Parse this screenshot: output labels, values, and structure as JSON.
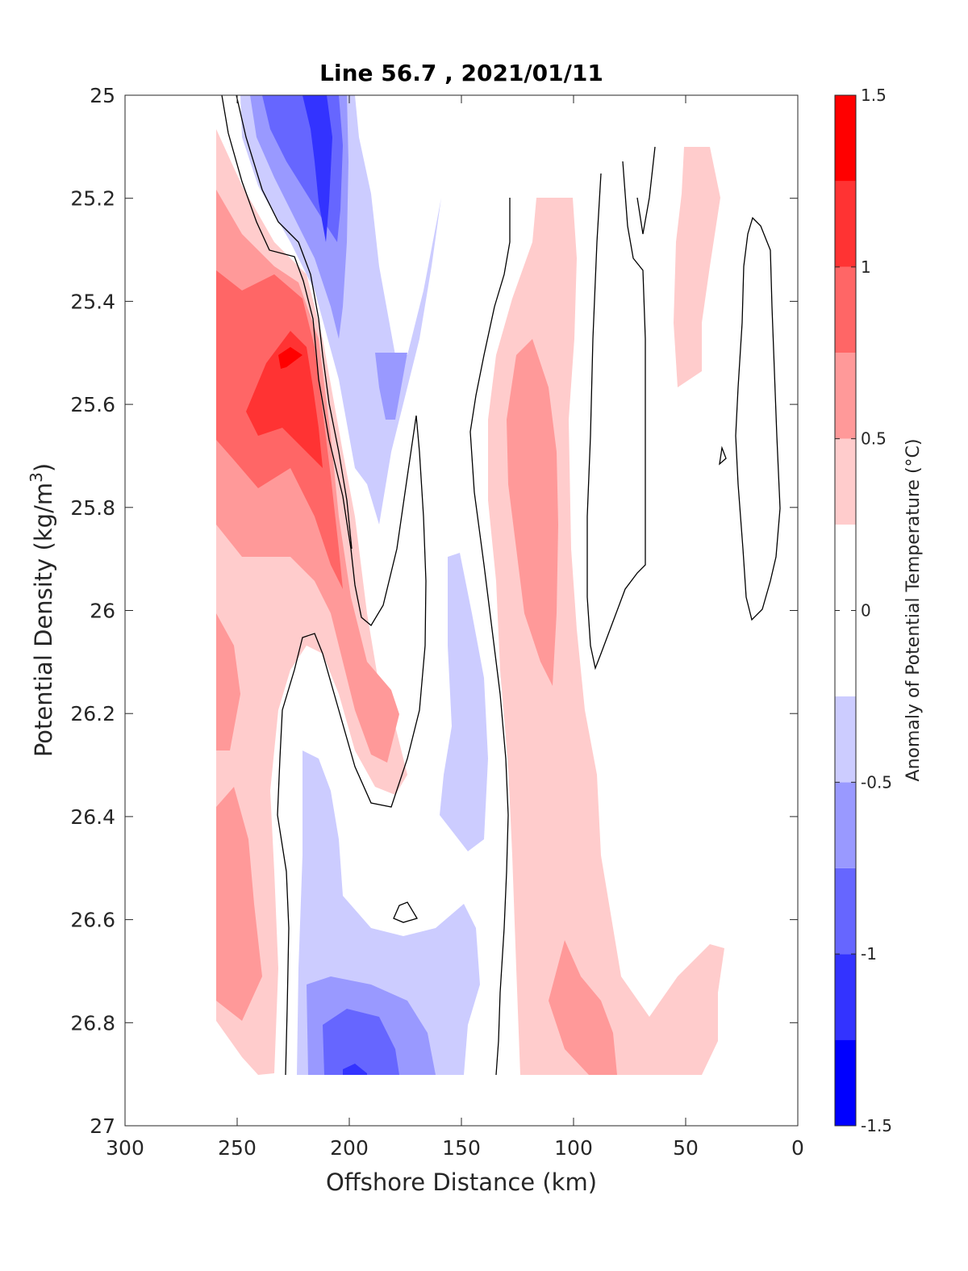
{
  "chart_data": {
    "type": "heatmap",
    "subtype": "filled-contour",
    "title": "Line 56.7 , 2021/01/11",
    "xlabel": "Offshore Distance (km)",
    "ylabel_main": "Potential Density (kg/m",
    "ylabel_sup": "3",
    "ylabel_close": ")",
    "x_ticks": [
      "300",
      "250",
      "200",
      "150",
      "100",
      "50",
      "0"
    ],
    "y_ticks": [
      "25",
      "25.2",
      "25.4",
      "25.6",
      "25.8",
      "26",
      "26.2",
      "26.4",
      "26.6",
      "26.8",
      "27"
    ],
    "xlim": [
      300,
      0
    ],
    "x_reversed": true,
    "ylim": [
      25,
      27
    ],
    "y_reversed": true,
    "colorbar": {
      "label": "Anomaly of Potential Temperature (°C)",
      "range": [
        -1.5,
        1.5
      ],
      "tick_labels": [
        "1.5",
        "1",
        "0.5",
        "0",
        "-0.5",
        "-1",
        "-1.5"
      ],
      "levels": [
        -1.5,
        -1.25,
        -1.0,
        -0.75,
        -0.5,
        -0.25,
        0.25,
        0.5,
        0.75,
        1.0,
        1.25,
        1.5
      ],
      "colors": [
        "#0000ff",
        "#3333ff",
        "#6666ff",
        "#9999ff",
        "#ccccff",
        "#ffffff",
        "#ffcccc",
        "#ff9999",
        "#ff6666",
        "#ff3333",
        "#ff0000"
      ]
    },
    "zero_contour_color": "#000000",
    "features": [
      {
        "label": "cold core near 210 km",
        "min_anomaly": -1.25,
        "x_range": [
          225,
          185
        ],
        "y_range": [
          25.0,
          25.5
        ]
      },
      {
        "label": "warm core near 225 km",
        "max_anomaly": 1.25,
        "x_range": [
          260,
          200
        ],
        "y_range": [
          25.35,
          26.15
        ]
      },
      {
        "label": "warm band near 110 km",
        "max_anomaly": 0.75,
        "x_range": [
          130,
          75
        ],
        "y_range": [
          25.2,
          26.9
        ]
      },
      {
        "label": "cold patch near 195 km deep",
        "min_anomaly": -1.0,
        "x_range": [
          225,
          150
        ],
        "y_range": [
          26.3,
          26.9
        ]
      },
      {
        "label": "warm patch near 45 km",
        "max_anomaly": 0.5,
        "x_range": [
          55,
          35
        ],
        "y_range": [
          25.1,
          25.55
        ]
      }
    ]
  }
}
